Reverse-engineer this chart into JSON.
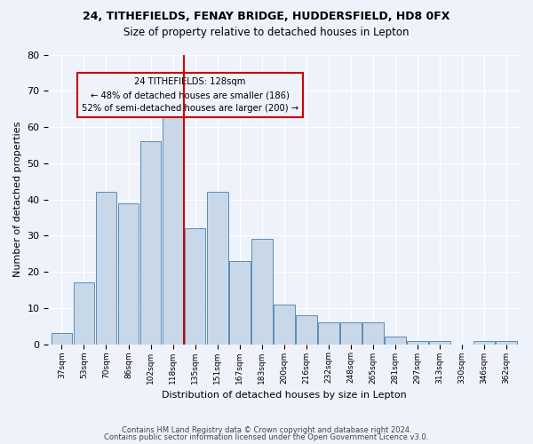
{
  "title1": "24, TITHEFIELDS, FENAY BRIDGE, HUDDERSFIELD, HD8 0FX",
  "title2": "Size of property relative to detached houses in Lepton",
  "xlabel": "Distribution of detached houses by size in Lepton",
  "ylabel": "Number of detached properties",
  "bins": [
    "37sqm",
    "53sqm",
    "70sqm",
    "86sqm",
    "102sqm",
    "118sqm",
    "135sqm",
    "151sqm",
    "167sqm",
    "183sqm",
    "200sqm",
    "216sqm",
    "232sqm",
    "248sqm",
    "265sqm",
    "281sqm",
    "297sqm",
    "313sqm",
    "330sqm",
    "346sqm",
    "362sqm"
  ],
  "values": [
    3,
    17,
    42,
    39,
    56,
    63,
    32,
    42,
    23,
    29,
    11,
    8,
    6,
    6,
    6,
    2,
    1,
    1,
    0,
    1,
    1
  ],
  "property_bin_index": 5,
  "annotation_line1": "24 TITHEFIELDS: 128sqm",
  "annotation_line2": "← 48% of detached houses are smaller (186)",
  "annotation_line3": "52% of semi-detached houses are larger (200) →",
  "bar_color": "#c8d8e8",
  "bar_edge_color": "#5b8db8",
  "line_color": "#cc0000",
  "box_edge_color": "#cc0000",
  "background_color": "#eef2fb",
  "footer1": "Contains HM Land Registry data © Crown copyright and database right 2024.",
  "footer2": "Contains public sector information licensed under the Open Government Licence v3.0.",
  "ylim": [
    0,
    80
  ]
}
